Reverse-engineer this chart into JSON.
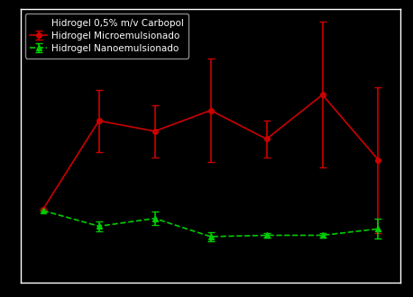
{
  "background_color": "#000000",
  "legend_text_color": "#ffffff",
  "axes_color": "#ffffff",
  "micro_x": [
    1,
    2,
    3,
    4,
    5,
    6,
    7
  ],
  "micro_y": [
    0.28,
    0.62,
    0.58,
    0.66,
    0.55,
    0.72,
    0.47
  ],
  "micro_yerr": [
    0.005,
    0.12,
    0.1,
    0.2,
    0.07,
    0.28,
    0.28
  ],
  "nano_x": [
    1,
    2,
    3,
    4,
    5,
    6,
    7
  ],
  "nano_y": [
    0.275,
    0.215,
    0.245,
    0.175,
    0.18,
    0.18,
    0.205
  ],
  "nano_yerr": [
    0.005,
    0.018,
    0.025,
    0.018,
    0.01,
    0.01,
    0.038
  ],
  "carbopol_x": [
    1
  ],
  "carbopol_y": [
    0.275
  ],
  "carbopol_yerr": [
    0.005
  ],
  "series_labels": [
    "Hidrogel 0,5% m/v Carbopol",
    "Hidrogel Microemulsionado",
    "Hidrogel Nanoemulsionado"
  ],
  "micro_color": "#cc0000",
  "nano_color": "#00cc00",
  "carbopol_color": "#000000",
  "micro_marker": "o",
  "nano_marker": "^",
  "carbopol_marker": "s",
  "micro_linestyle": "-",
  "nano_linestyle": "--",
  "carbopol_linestyle": "-",
  "ylim": [
    0.0,
    1.05
  ],
  "xlim": [
    0.6,
    7.4
  ],
  "figsize": [
    4.58,
    3.3
  ],
  "dpi": 100,
  "markersize": 4,
  "linewidth": 1.2,
  "capsize": 3
}
